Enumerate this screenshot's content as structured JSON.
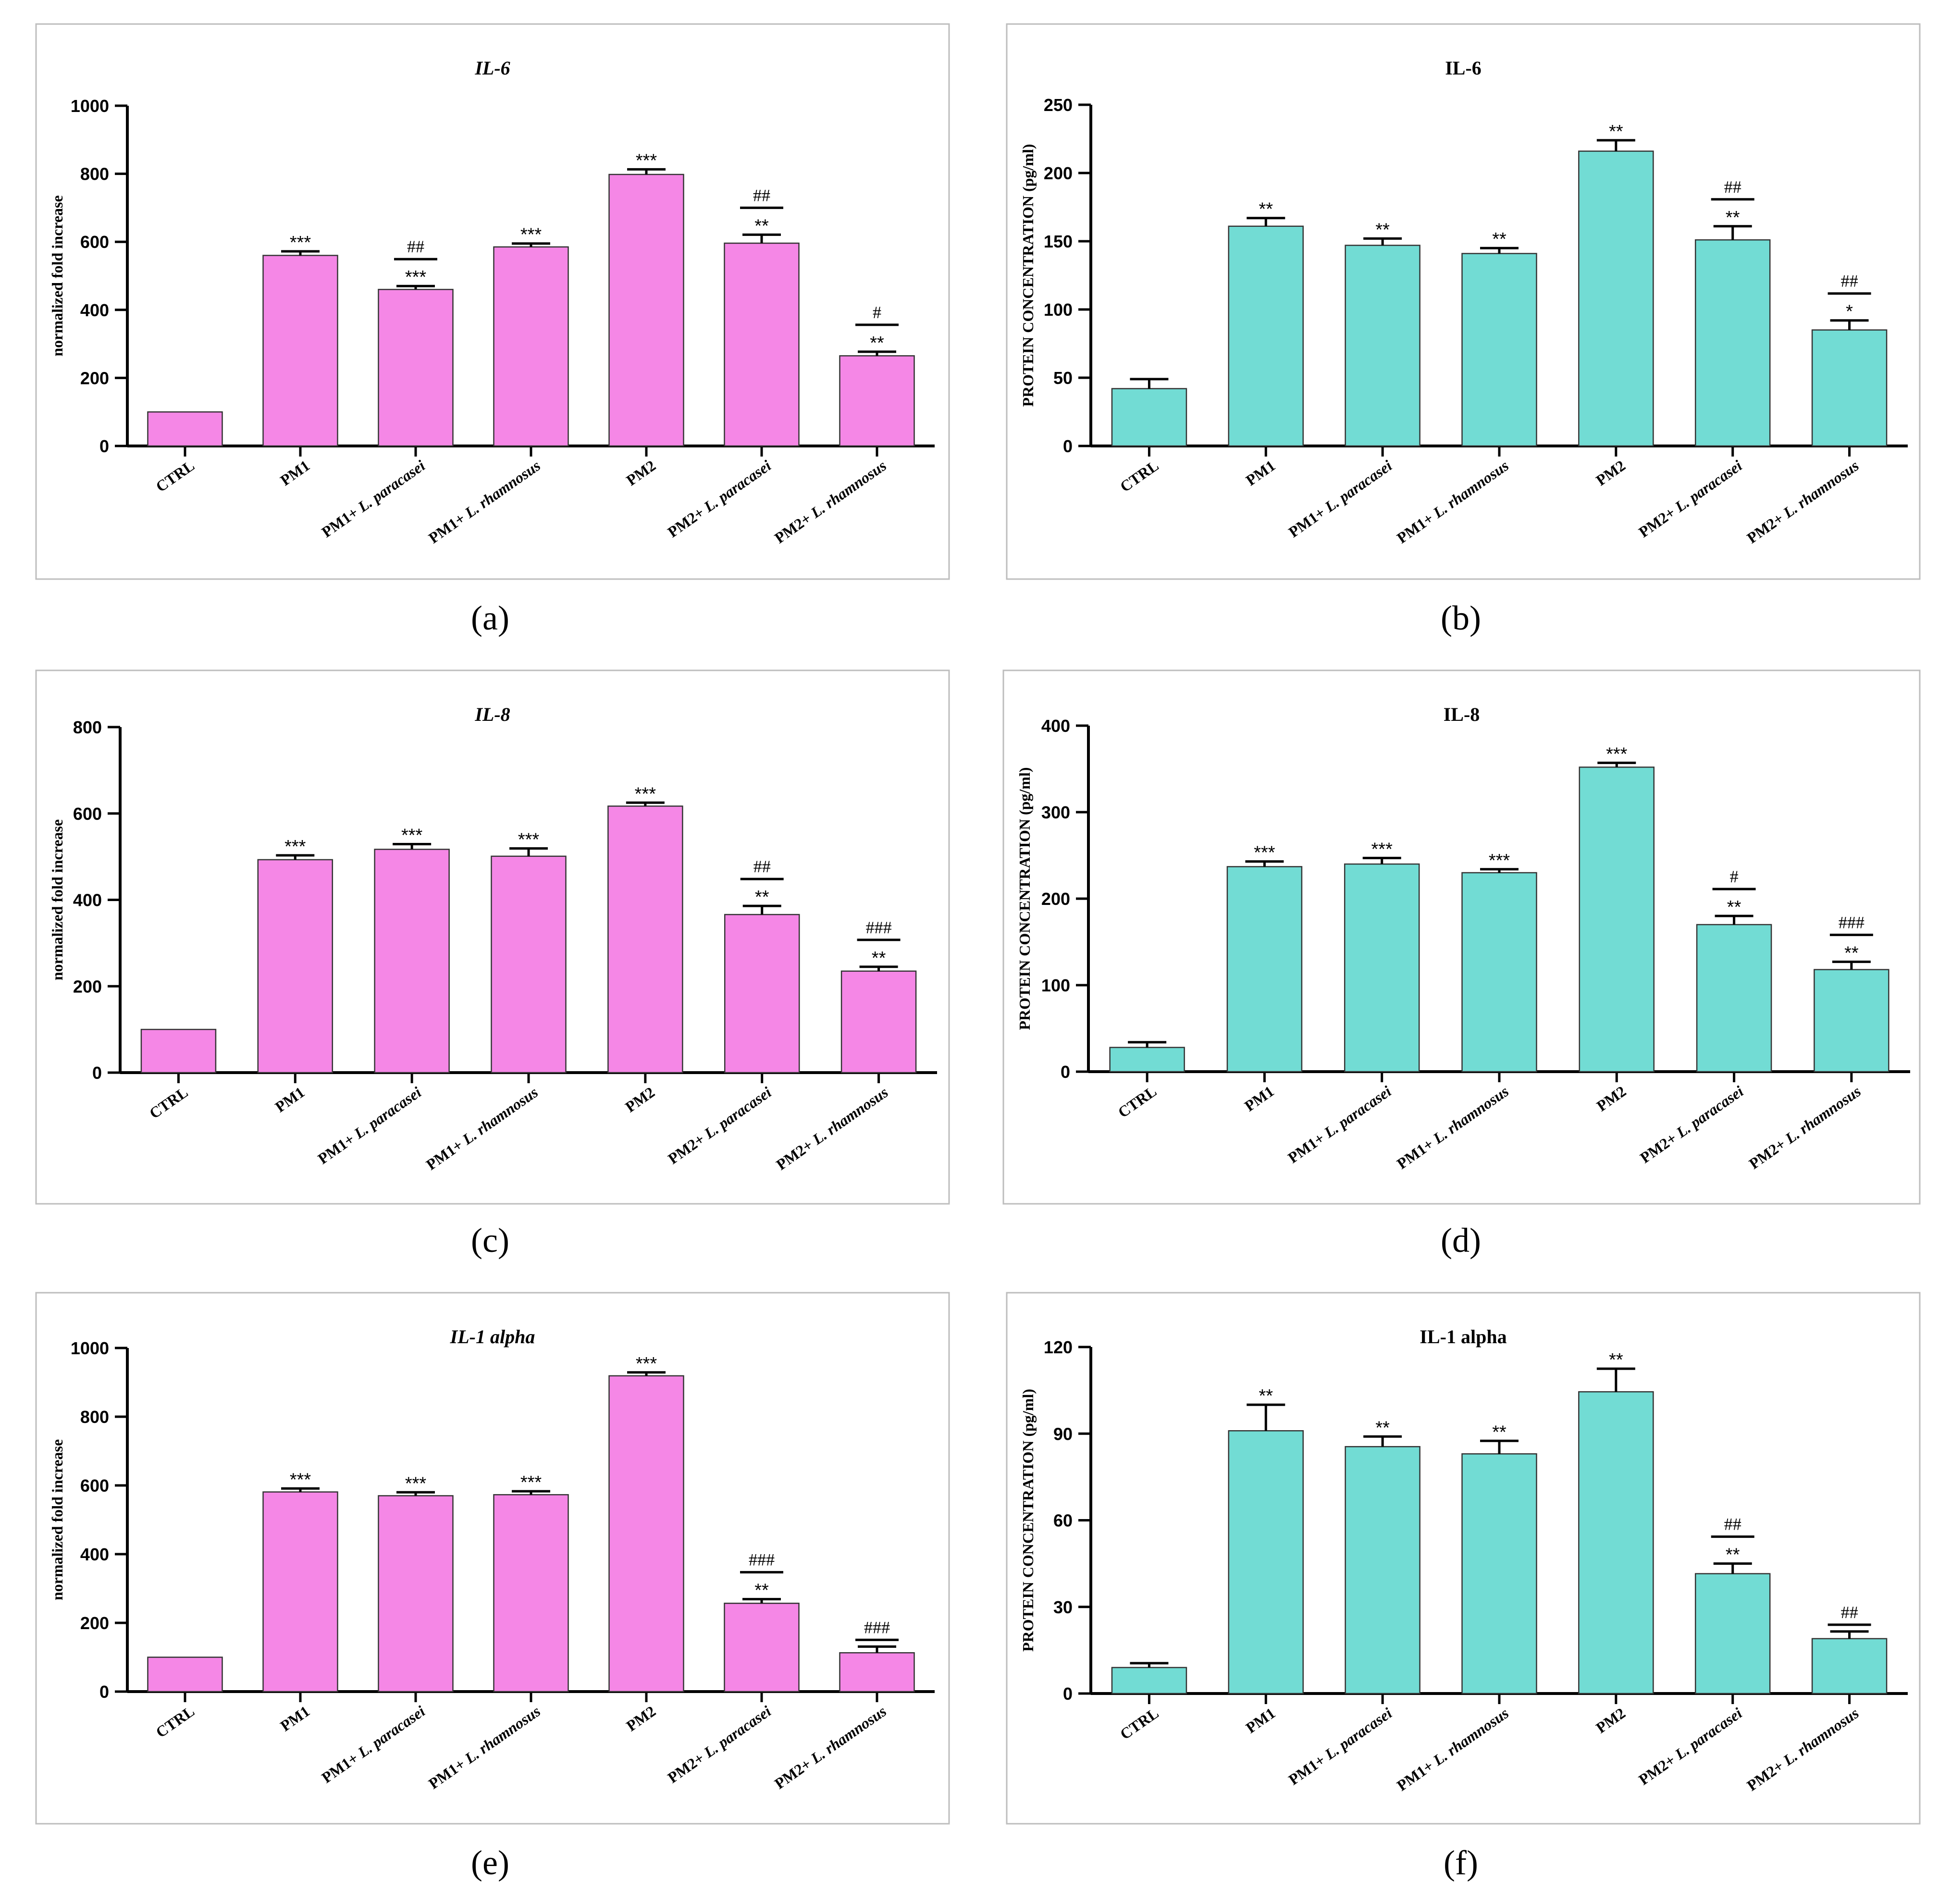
{
  "figure": {
    "captions": [
      "(a)",
      "(b)",
      "(c)",
      "(d)",
      "(e)",
      "(f)"
    ]
  },
  "colors": {
    "pink": "#f587e6",
    "teal": "#72dcd4",
    "axis": "#000000",
    "frame": "#bdbdbd"
  },
  "chart_data": [
    {
      "type": "bar",
      "panel": "a",
      "title": "IL-6",
      "title_italic": true,
      "ylabel": "normalized fold increase",
      "xlabel": "",
      "ylim": [
        0,
        1000
      ],
      "yticks": [
        "0",
        "200",
        "400",
        "600",
        "800",
        "1000"
      ],
      "categories": [
        "CTRL",
        "PM1",
        "PM1+ L. paracasei",
        "PM1+ L. rhamnosus",
        "PM2",
        "PM2+ L. paracasei",
        "PM2+ L. rhamnosus"
      ],
      "values": [
        100,
        560,
        460,
        585,
        798,
        596,
        265
      ],
      "errors": [
        0,
        12,
        10,
        10,
        15,
        25,
        12
      ],
      "stars": [
        "",
        "***",
        "***",
        "***",
        "***",
        "**",
        "**"
      ],
      "hashes": [
        "",
        "",
        "##",
        "",
        "",
        "##",
        "#"
      ],
      "color": "pink"
    },
    {
      "type": "bar",
      "panel": "b",
      "title": "IL-6",
      "title_italic": false,
      "ylabel": "PROTEIN CONCENTRATION (pg/ml)",
      "xlabel": "",
      "ylim": [
        0,
        250
      ],
      "yticks": [
        "0",
        "50",
        "100",
        "150",
        "200",
        "250"
      ],
      "categories": [
        "CTRL",
        "PM1",
        "PM1+ L. paracasei",
        "PM1+ L. rhamnosus",
        "PM2",
        "PM2+ L. paracasei",
        "PM2+ L. rhamnosus"
      ],
      "values": [
        42,
        161,
        147,
        141,
        216,
        151,
        85
      ],
      "errors": [
        7,
        6,
        5,
        4,
        8,
        10,
        7
      ],
      "stars": [
        "",
        "**",
        "**",
        "**",
        "**",
        "**",
        "*"
      ],
      "hashes": [
        "",
        "",
        "",
        "",
        "",
        "##",
        "##"
      ],
      "color": "teal"
    },
    {
      "type": "bar",
      "panel": "c",
      "title": "IL-8",
      "title_italic": true,
      "ylabel": "normalized fold increase",
      "xlabel": "",
      "ylim": [
        0,
        800
      ],
      "yticks": [
        "0",
        "200",
        "400",
        "600",
        "800"
      ],
      "categories": [
        "CTRL",
        "PM1",
        "PM1+ L. paracasei",
        "PM1+ L. rhamnosus",
        "PM2",
        "PM2+ L. paracasei",
        "PM2+ L. rhamnosus"
      ],
      "values": [
        100,
        493,
        517,
        501,
        617,
        366,
        235
      ],
      "errors": [
        0,
        10,
        12,
        18,
        8,
        20,
        10
      ],
      "stars": [
        "",
        "***",
        "***",
        "***",
        "***",
        "**",
        "**"
      ],
      "hashes": [
        "",
        "",
        "",
        "",
        "",
        "##",
        "###"
      ],
      "color": "pink"
    },
    {
      "type": "bar",
      "panel": "d",
      "title": "IL-8",
      "title_italic": false,
      "ylabel": "PROTEIN CONCENTRATION (pg/ml)",
      "xlabel": "",
      "ylim": [
        0,
        400
      ],
      "yticks": [
        "0",
        "100",
        "200",
        "300",
        "400"
      ],
      "categories": [
        "CTRL",
        "PM1",
        "PM1+ L. paracasei",
        "PM1+ L. rhamnosus",
        "PM2",
        "PM2+ L. paracasei",
        "PM2+ L. rhamnosus"
      ],
      "values": [
        28,
        237,
        240,
        230,
        352,
        170,
        118
      ],
      "errors": [
        6,
        6,
        7,
        4,
        5,
        10,
        9
      ],
      "stars": [
        "",
        "***",
        "***",
        "***",
        "***",
        "**",
        "**"
      ],
      "hashes": [
        "",
        "",
        "",
        "",
        "",
        "#",
        "###"
      ],
      "color": "teal"
    },
    {
      "type": "bar",
      "panel": "e",
      "title": "IL-1 alpha",
      "title_italic": true,
      "ylabel": "normalized fold increase",
      "xlabel": "",
      "ylim": [
        0,
        1000
      ],
      "yticks": [
        "0",
        "200",
        "400",
        "600",
        "800",
        "1000"
      ],
      "categories": [
        "CTRL",
        "PM1",
        "PM1+ L. paracasei",
        "PM1+ L. rhamnosus",
        "PM2",
        "PM2+ L. paracasei",
        "PM2+ L. rhamnosus"
      ],
      "values": [
        100,
        581,
        570,
        573,
        919,
        257,
        113
      ],
      "errors": [
        0,
        10,
        10,
        10,
        10,
        12,
        18
      ],
      "stars": [
        "",
        "***",
        "***",
        "***",
        "***",
        "**",
        ""
      ],
      "hashes": [
        "",
        "",
        "",
        "",
        "",
        "###",
        "###"
      ],
      "color": "pink"
    },
    {
      "type": "bar",
      "panel": "f",
      "title": "IL-1 alpha",
      "title_italic": false,
      "ylabel": "PROTEIN CONCENTRATION (pg/ml)",
      "xlabel": "",
      "ylim": [
        0,
        120
      ],
      "yticks": [
        "0",
        "30",
        "60",
        "90",
        "120"
      ],
      "categories": [
        "CTRL",
        "PM1",
        "PM1+ L. paracasei",
        "PM1+ L. rhamnosus",
        "PM2",
        "PM2+ L. paracasei",
        "PM2+ L. rhamnosus"
      ],
      "values": [
        9,
        91,
        85.5,
        83,
        104.5,
        41.5,
        19
      ],
      "errors": [
        1.5,
        9,
        3.5,
        4.5,
        8,
        3.5,
        2.5
      ],
      "stars": [
        "",
        "**",
        "**",
        "**",
        "**",
        "**",
        ""
      ],
      "hashes": [
        "",
        "",
        "",
        "",
        "",
        "##",
        "##"
      ],
      "color": "teal"
    }
  ]
}
